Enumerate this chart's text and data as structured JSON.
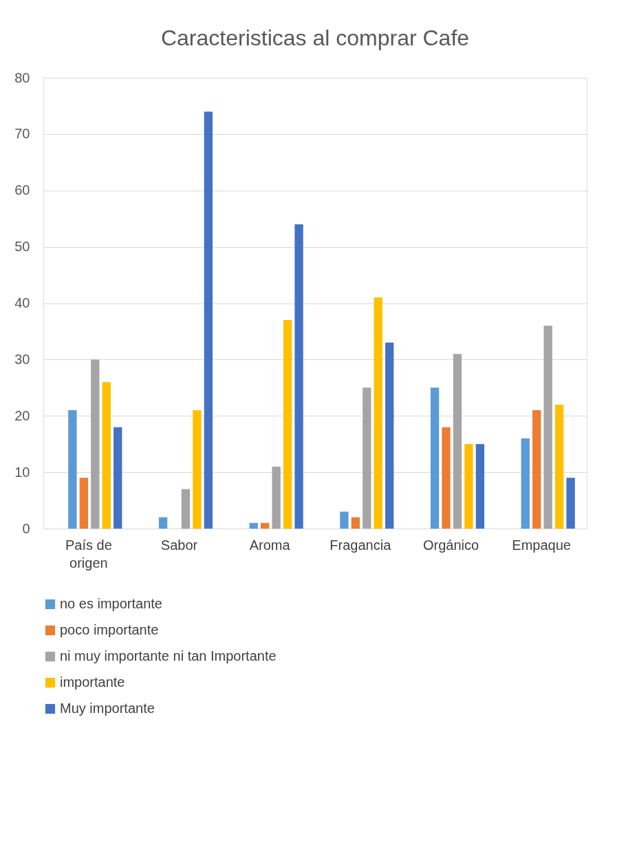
{
  "chart_data": {
    "type": "bar",
    "title": "Caracteristicas al comprar Cafe",
    "categories": [
      "País de origen",
      "Sabor",
      "Aroma",
      "Fragancia",
      "Orgánico",
      "Empaque"
    ],
    "series": [
      {
        "name": "no es importante",
        "color": "#5b9bd5",
        "values": [
          21,
          2,
          1,
          3,
          25,
          16
        ]
      },
      {
        "name": "poco importante",
        "color": "#ed7d31",
        "values": [
          9,
          0,
          1,
          2,
          18,
          21
        ]
      },
      {
        "name": "ni muy importante ni tan Importante",
        "color": "#a5a5a5",
        "values": [
          30,
          7,
          11,
          25,
          31,
          36
        ]
      },
      {
        "name": "importante",
        "color": "#ffc000",
        "values": [
          26,
          21,
          37,
          41,
          15,
          22
        ]
      },
      {
        "name": "Muy importante",
        "color": "#4472c4",
        "values": [
          18,
          74,
          54,
          33,
          15,
          9
        ]
      }
    ],
    "ylim": [
      0,
      80
    ],
    "yticks": [
      0,
      10,
      20,
      30,
      40,
      50,
      60,
      70,
      80
    ],
    "grid": "y",
    "legend": "bottom"
  }
}
